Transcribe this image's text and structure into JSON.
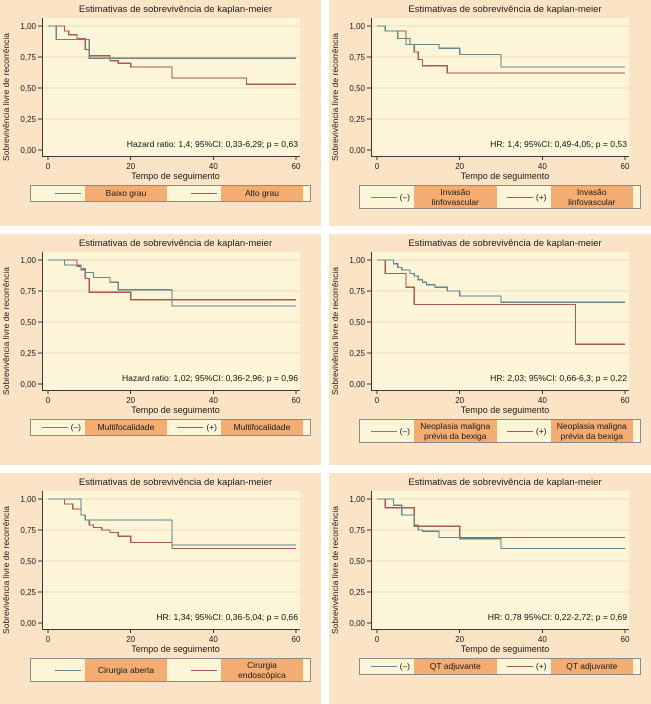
{
  "colors": {
    "panel_background": "#fbe4c6",
    "plot_background": "#fcf5d8",
    "gridline": "#f0dcc0",
    "axis": "#3a3a3a",
    "text": "#1a1a1a",
    "legend_highlight": "#f3ad72",
    "legend_border": "#8b8b8b",
    "series_blue": "#64888e",
    "series_red": "#ac5a50"
  },
  "chart_data": [
    {
      "type": "line",
      "step": true,
      "grid": true,
      "legend_position": "bottom",
      "title": "Estimativas de sobrevivência de kaplan-meier",
      "xlabel": "Tempo de seguimento",
      "ylabel": "Sobrevivência livre de recorrência",
      "xticks": [
        "0",
        "20",
        "40",
        "60"
      ],
      "yticks": [
        "1,00",
        "0,75",
        "0,50",
        "0,25",
        "0,00"
      ],
      "xlim": [
        0,
        60
      ],
      "ylim": [
        0,
        1
      ],
      "annotation": "Hazard ratio: 1,4; 95%CI: 0,33-6,29; p = 0,63",
      "series": [
        {
          "name": "Baixo grau",
          "legend_prefix": "",
          "color_key": "blue",
          "points": [
            [
              0,
              1.0
            ],
            [
              2,
              0.89
            ],
            [
              10,
              0.74
            ],
            [
              60,
              0.74
            ]
          ]
        },
        {
          "name": "Alto grau",
          "legend_prefix": "",
          "color_key": "red",
          "points": [
            [
              0,
              1.0
            ],
            [
              4,
              0.96
            ],
            [
              5,
              0.93
            ],
            [
              7,
              0.9
            ],
            [
              9,
              0.81
            ],
            [
              10,
              0.76
            ],
            [
              15,
              0.72
            ],
            [
              17,
              0.7
            ],
            [
              20,
              0.67
            ],
            [
              30,
              0.58
            ],
            [
              48,
              0.53
            ],
            [
              60,
              0.53
            ]
          ]
        }
      ]
    },
    {
      "type": "line",
      "step": true,
      "grid": true,
      "legend_position": "bottom",
      "title": "Estimativas de sobrevivência de kaplan-meier",
      "xlabel": "Tempo de seguimento",
      "ylabel": "Sobrevivência livre de recorrência",
      "xticks": [
        "0",
        "20",
        "40",
        "60"
      ],
      "yticks": [
        "1,00",
        "0,75",
        "0,50",
        "0,25",
        "0,00"
      ],
      "xlim": [
        0,
        60
      ],
      "ylim": [
        0,
        1
      ],
      "annotation": "HR: 1,4; 95%CI: 0,49-4,05; p = 0,53",
      "series": [
        {
          "name": "Invasão linfovascular",
          "legend_prefix": "(–)",
          "color_key": "blue",
          "points": [
            [
              0,
              1.0
            ],
            [
              2,
              0.96
            ],
            [
              5,
              0.9
            ],
            [
              7,
              0.85
            ],
            [
              15,
              0.82
            ],
            [
              20,
              0.77
            ],
            [
              30,
              0.67
            ],
            [
              60,
              0.67
            ]
          ]
        },
        {
          "name": "Invasão linfovascular",
          "legend_prefix": "(+)",
          "color_key": "red",
          "points": [
            [
              0,
              1.0
            ],
            [
              2,
              0.96
            ],
            [
              7,
              0.9
            ],
            [
              8,
              0.85
            ],
            [
              9,
              0.79
            ],
            [
              10,
              0.73
            ],
            [
              11,
              0.68
            ],
            [
              17,
              0.62
            ],
            [
              60,
              0.62
            ]
          ]
        }
      ]
    },
    {
      "type": "line",
      "step": true,
      "grid": true,
      "legend_position": "bottom",
      "title": "Estimativas de sobrevivência de kaplan-meier",
      "xlabel": "Tempo de seguimento",
      "ylabel": "Sobrevivência livre de recorrência",
      "xticks": [
        "0",
        "20",
        "40",
        "60"
      ],
      "yticks": [
        "1,00",
        "0,75",
        "0,50",
        "0,25",
        "0,00"
      ],
      "xlim": [
        0,
        60
      ],
      "ylim": [
        0,
        1
      ],
      "annotation": "Hazard ratio: 1,02; 95%CI: 0,36-2,96; p = 0,96",
      "series": [
        {
          "name": "Multifocalidade",
          "legend_prefix": "(–)",
          "color_key": "blue",
          "points": [
            [
              0,
              1.0
            ],
            [
              4,
              0.96
            ],
            [
              8,
              0.93
            ],
            [
              9,
              0.9
            ],
            [
              11,
              0.86
            ],
            [
              15,
              0.82
            ],
            [
              17,
              0.76
            ],
            [
              30,
              0.63
            ],
            [
              60,
              0.63
            ]
          ]
        },
        {
          "name": "Multifocalidade",
          "legend_prefix": "(+)",
          "color_key": "red",
          "points": [
            [
              0,
              1.0
            ],
            [
              7,
              0.95
            ],
            [
              8,
              0.92
            ],
            [
              9,
              0.85
            ],
            [
              10,
              0.74
            ],
            [
              20,
              0.68
            ],
            [
              60,
              0.68
            ]
          ]
        }
      ]
    },
    {
      "type": "line",
      "step": true,
      "grid": true,
      "legend_position": "bottom",
      "title": "Estimativas de sobrevivência de kaplan-meier",
      "xlabel": "Tempo de seguimento",
      "ylabel": "Sobrevivência livre de recorrência",
      "xticks": [
        "0",
        "20",
        "40",
        "60"
      ],
      "yticks": [
        "1,00",
        "0,75",
        "0,50",
        "0,25",
        "0,00"
      ],
      "xlim": [
        0,
        60
      ],
      "ylim": [
        0,
        1
      ],
      "annotation": "HR: 2,03; 95%CI: 0,66-6,3; p = 0,22",
      "series": [
        {
          "name": "Neoplasia maligna prévia da bexiga",
          "legend_prefix": "(–)",
          "color_key": "blue",
          "points": [
            [
              0,
              1.0
            ],
            [
              4,
              0.97
            ],
            [
              5,
              0.94
            ],
            [
              6,
              0.92
            ],
            [
              8,
              0.89
            ],
            [
              9,
              0.87
            ],
            [
              10,
              0.84
            ],
            [
              11,
              0.82
            ],
            [
              12,
              0.8
            ],
            [
              14,
              0.78
            ],
            [
              17,
              0.75
            ],
            [
              20,
              0.71
            ],
            [
              30,
              0.66
            ],
            [
              60,
              0.66
            ]
          ]
        },
        {
          "name": "Neoplasia maligna prévia da bexiga",
          "legend_prefix": "(+)",
          "color_key": "red",
          "points": [
            [
              0,
              1.0
            ],
            [
              2,
              0.89
            ],
            [
              7,
              0.78
            ],
            [
              9,
              0.64
            ],
            [
              48,
              0.32
            ],
            [
              60,
              0.32
            ]
          ]
        }
      ]
    },
    {
      "type": "line",
      "step": true,
      "grid": true,
      "legend_position": "bottom",
      "title": "Estimativas de sobrevivência de kaplan-meier",
      "xlabel": "Tempo de seguimento",
      "ylabel": "Sobrevivência livre de recorrência",
      "xticks": [
        "0",
        "20",
        "40",
        "60"
      ],
      "yticks": [
        "1,00",
        "0,75",
        "0,50",
        "0,25",
        "0,00"
      ],
      "xlim": [
        0,
        60
      ],
      "ylim": [
        0,
        1
      ],
      "annotation": "HR: 1,34; 95%CI: 0,36-5,04; p = 0,66",
      "series": [
        {
          "name": "Cirurgia aberta",
          "legend_prefix": "",
          "color_key": "blue",
          "points": [
            [
              0,
              1.0
            ],
            [
              8,
              0.87
            ],
            [
              9,
              0.83
            ],
            [
              30,
              0.63
            ],
            [
              60,
              0.63
            ]
          ]
        },
        {
          "name": "Cirurgia endoscópica",
          "legend_prefix": "",
          "color_key": "red",
          "points": [
            [
              0,
              1.0
            ],
            [
              4,
              0.96
            ],
            [
              6,
              0.92
            ],
            [
              8,
              0.87
            ],
            [
              9,
              0.83
            ],
            [
              10,
              0.79
            ],
            [
              11,
              0.77
            ],
            [
              13,
              0.75
            ],
            [
              15,
              0.73
            ],
            [
              17,
              0.7
            ],
            [
              20,
              0.65
            ],
            [
              30,
              0.6
            ],
            [
              60,
              0.6
            ]
          ]
        }
      ]
    },
    {
      "type": "line",
      "step": true,
      "grid": true,
      "legend_position": "bottom",
      "title": "Estimativas de sobrevivência de kaplan-meier",
      "xlabel": "Tempo de seguimento",
      "ylabel": "Sobrevivência livre de recorrência",
      "xticks": [
        "0",
        "20",
        "40",
        "60"
      ],
      "yticks": [
        "1,00",
        "0,75",
        "0,50",
        "0,25",
        "0,00"
      ],
      "xlim": [
        0,
        60
      ],
      "ylim": [
        0,
        1
      ],
      "annotation": "HR: 0,78 95%CI: 0,22-2,72; p = 0,69",
      "series": [
        {
          "name": "QT adjuvante",
          "legend_prefix": "(–)",
          "color_key": "blue",
          "points": [
            [
              0,
              1.0
            ],
            [
              4,
              0.95
            ],
            [
              6,
              0.87
            ],
            [
              9,
              0.79
            ],
            [
              10,
              0.75
            ],
            [
              11,
              0.74
            ],
            [
              15,
              0.69
            ],
            [
              20,
              0.68
            ],
            [
              30,
              0.6
            ],
            [
              60,
              0.6
            ]
          ]
        },
        {
          "name": "QT adjuvante",
          "legend_prefix": "(+)",
          "color_key": "red",
          "points": [
            [
              0,
              1.0
            ],
            [
              2,
              0.93
            ],
            [
              9,
              0.78
            ],
            [
              20,
              0.69
            ],
            [
              60,
              0.69
            ]
          ]
        }
      ]
    }
  ]
}
